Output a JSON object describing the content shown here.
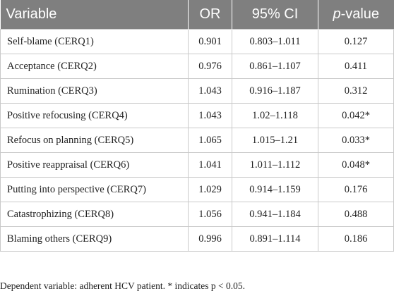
{
  "table": {
    "headers": {
      "variable": "Variable",
      "or": "OR",
      "ci": "95% CI",
      "p_prefix": "p",
      "p_suffix": "-value"
    },
    "rows": [
      {
        "variable": "Self-blame (CERQ1)",
        "or": "0.901",
        "ci": "0.803–1.011",
        "p": "0.127"
      },
      {
        "variable": "Acceptance (CERQ2)",
        "or": "0.976",
        "ci": "0.861–1.107",
        "p": "0.411"
      },
      {
        "variable": "Rumination (CERQ3)",
        "or": "1.043",
        "ci": "0.916–1.187",
        "p": "0.312"
      },
      {
        "variable": "Positive refocusing (CERQ4)",
        "or": "1.043",
        "ci": "1.02–1.118",
        "p": "0.042*"
      },
      {
        "variable": "Refocus on planning (CERQ5)",
        "or": "1.065",
        "ci": "1.015–1.21",
        "p": "0.033*"
      },
      {
        "variable": "Positive reappraisal (CERQ6)",
        "or": "1.041",
        "ci": "1.011–1.112",
        "p": "0.048*"
      },
      {
        "variable": "Putting into perspective (CERQ7)",
        "or": "1.029",
        "ci": "0.914–1.159",
        "p": "0.176"
      },
      {
        "variable": "Catastrophizing (CERQ8)",
        "or": "1.056",
        "ci": "0.941–1.184",
        "p": "0.488"
      },
      {
        "variable": "Blaming others (CERQ9)",
        "or": "0.996",
        "ci": "0.891–1.114",
        "p": "0.186"
      }
    ]
  },
  "footnote": "Dependent variable: adherent HCV patient. * indicates p < 0.05.",
  "colors": {
    "header_bg": "#7f7f7f",
    "header_text": "#ffffff",
    "grid": "#c9c9c9"
  }
}
